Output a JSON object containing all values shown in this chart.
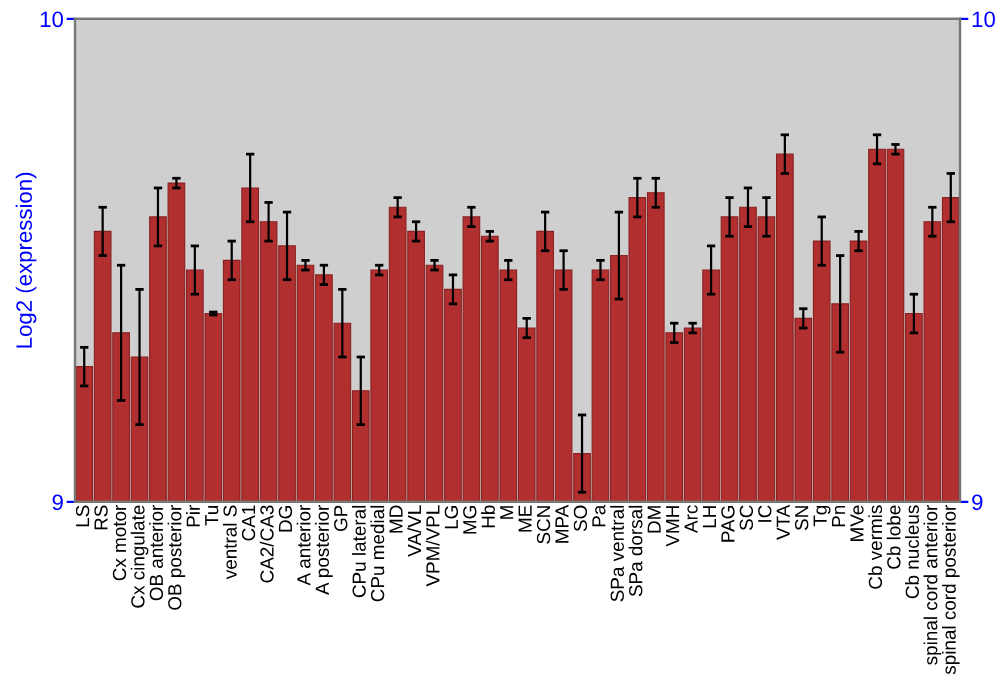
{
  "chart_data": {
    "type": "bar",
    "ylabel": "Log2 (expression)",
    "categories": [
      "LS",
      "RS",
      "Cx motor",
      "Cx cingulate",
      "OB anterior",
      "OB posterior",
      "Pir",
      "Tu",
      "ventral S",
      "CA1",
      "CA2/CA3",
      "DG",
      "A anterior",
      "A posterior",
      "GP",
      "CPu lateral",
      "CPu medial",
      "MD",
      "VA/VL",
      "VPM/VPL",
      "LG",
      "MG",
      "Hb",
      "M",
      "ME",
      "SCN",
      "MPA",
      "SO",
      "Pa",
      "SPa ventral",
      "SPa dorsal",
      "DM",
      "VMH",
      "Arc",
      "LH",
      "PAG",
      "SC",
      "IC",
      "VTA",
      "SN",
      "Tg",
      "Pn",
      "MVe",
      "Cb vermis",
      "Cb lobe",
      "Cb nucleus",
      "spinal cord anterior",
      "spinal cord posterior"
    ],
    "series": [
      {
        "color": "#b22f2f",
        "values": [
          9.28,
          9.56,
          9.35,
          9.3,
          9.59,
          9.66,
          9.48,
          9.39,
          9.5,
          9.65,
          9.58,
          9.53,
          9.49,
          9.47,
          9.37,
          9.23,
          9.48,
          9.61,
          9.56,
          9.49,
          9.44,
          9.59,
          9.55,
          9.48,
          9.36,
          9.56,
          9.48,
          9.1,
          9.48,
          9.51,
          9.63,
          9.64,
          9.35,
          9.36,
          9.48,
          9.59,
          9.61,
          9.59,
          9.72,
          9.38,
          9.54,
          9.41,
          9.54,
          9.73,
          9.73,
          9.39,
          9.58,
          9.63
        ],
        "errors": [
          0.04,
          0.05,
          0.14,
          0.14,
          0.06,
          0.01,
          0.05,
          0.003,
          0.04,
          0.07,
          0.04,
          0.07,
          0.01,
          0.02,
          0.07,
          0.07,
          0.01,
          0.02,
          0.02,
          0.01,
          0.03,
          0.02,
          0.01,
          0.02,
          0.02,
          0.04,
          0.04,
          0.08,
          0.02,
          0.09,
          0.04,
          0.03,
          0.02,
          0.01,
          0.05,
          0.04,
          0.04,
          0.04,
          0.04,
          0.02,
          0.05,
          0.1,
          0.02,
          0.03,
          0.01,
          0.04,
          0.03,
          0.05
        ]
      }
    ],
    "ylim": [
      9,
      10
    ],
    "yticks": [
      9,
      10
    ],
    "y2lim": [
      9,
      10
    ],
    "y2ticks": [
      9,
      10
    ],
    "grid": false,
    "legend": false
  }
}
